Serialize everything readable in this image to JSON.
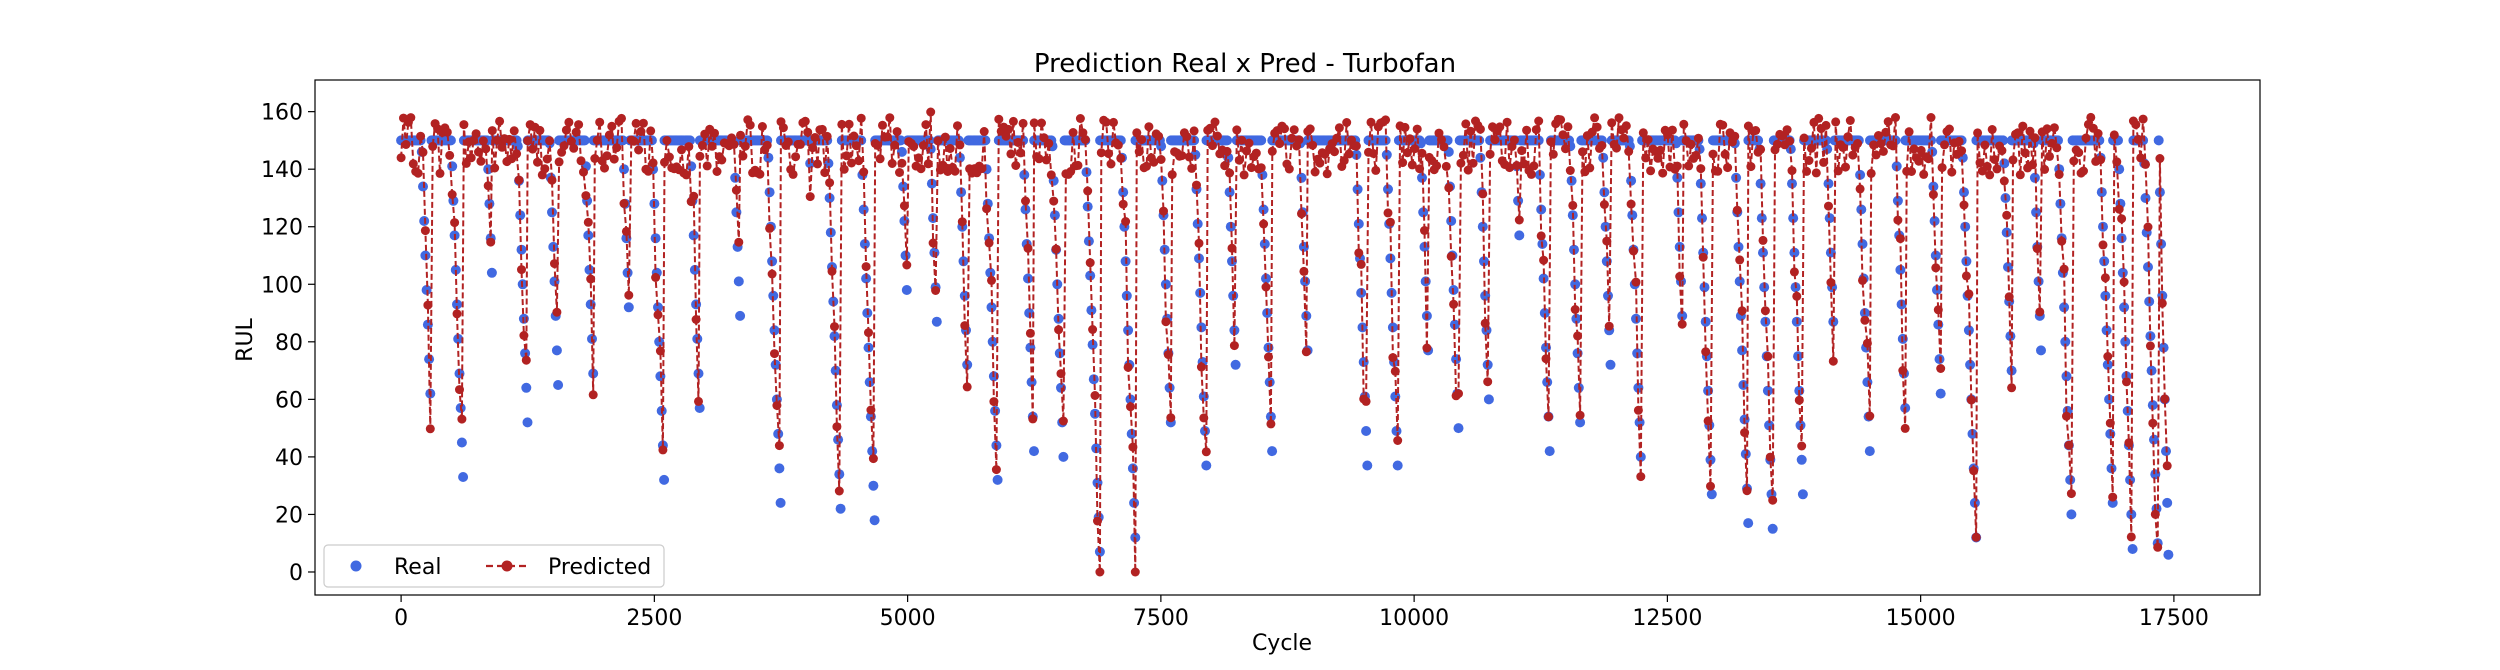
{
  "chart_data": {
    "type": "line",
    "title": "Prediction Real x Pred - Turbofan",
    "xlabel": "Cycle",
    "ylabel": "RUL",
    "xlim": [
      -850,
      18350
    ],
    "ylim": [
      -8,
      171
    ],
    "xticks": [
      0,
      2500,
      5000,
      7500,
      10000,
      12500,
      15000,
      17500
    ],
    "yticks": [
      0,
      20,
      40,
      60,
      80,
      100,
      120,
      140,
      160
    ],
    "grid": false,
    "legend_position": "lower-left",
    "series": [
      {
        "name": "Real",
        "style": "markers",
        "color": "#4169E1",
        "cap": 150,
        "unit_starts": [
          0,
          300,
          620,
          900,
          1250,
          1560,
          1900,
          2260,
          2600,
          2950,
          3350,
          3750,
          4050,
          4350,
          4680,
          5000,
          5300,
          5600,
          5900,
          6250,
          6550,
          6900,
          7250,
          7600,
          7950,
          8250,
          8600,
          8950,
          9250,
          9550,
          9850,
          10150,
          10450,
          10750,
          11050,
          11350,
          11650,
          11950,
          12250,
          12650,
          12950,
          13300,
          13550,
          13850,
          14150,
          14500,
          14850,
          15200,
          15550,
          15900,
          16200,
          16500,
          16900,
          17100,
          17350
        ],
        "unit_mins": [
          50,
          25,
          100,
          50,
          55,
          65,
          80,
          28,
          55,
          85,
          20,
          130,
          10,
          12,
          90,
          75,
          60,
          20,
          40,
          28,
          5,
          10,
          50,
          35,
          60,
          40,
          75,
          140,
          25,
          25,
          65,
          38,
          48,
          105,
          30,
          40,
          60,
          28,
          85,
          15,
          15,
          5,
          15,
          75,
          40,
          55,
          60,
          10,
          68,
          65,
          8,
          20,
          0,
          0,
          0
        ]
      },
      {
        "name": "Predicted",
        "style": "dashed-line-with-markers",
        "color": "#B22222",
        "values_note_range": [
          0,
          164
        ]
      }
    ]
  }
}
